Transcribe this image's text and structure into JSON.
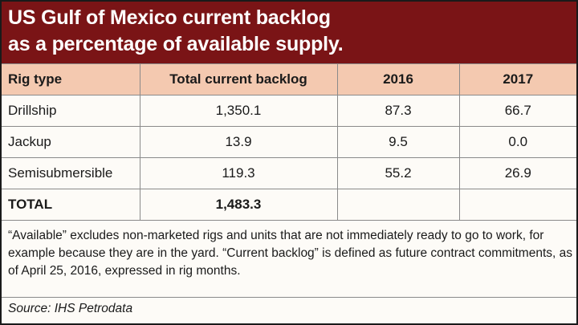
{
  "chart_data": {
    "type": "table",
    "title_lines": [
      "US Gulf of Mexico current backlog",
      "as a percentage of available supply."
    ],
    "columns": [
      "Rig type",
      "Total current backlog",
      "2016",
      "2017"
    ],
    "rows": [
      [
        "Drillship",
        "1,350.1",
        "87.3",
        "66.7"
      ],
      [
        "Jackup",
        "13.9",
        "9.5",
        "0.0"
      ],
      [
        "Semisubmersible",
        "119.3",
        "55.2",
        "26.9"
      ],
      [
        "TOTAL",
        "1,483.3",
        "",
        ""
      ]
    ],
    "note": "“Available” excludes non-marketed rigs and units that are not immediately ready to go to work, for example because they are in the yard. “Current backlog” is defined as future contract commitments, as of April 25, 2016, expressed in rig months.",
    "source": "Source: IHS Petrodata"
  },
  "colors": {
    "title_background": "#7a1416",
    "header_background": "#f4c9b0"
  }
}
